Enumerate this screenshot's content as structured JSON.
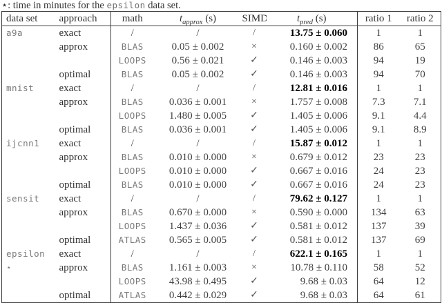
{
  "caption": {
    "prefix": "⋆: time in minutes for the ",
    "dataset_code": "epsilon",
    "suffix": " data set."
  },
  "colors": {
    "border": "#3a3a3a",
    "text": "#333333",
    "mono_text": "#7a7a7a",
    "bold_text": "#000000"
  },
  "table": {
    "headers": {
      "dataset": "data set",
      "approach": "approach",
      "math": "math",
      "t_approx": {
        "sym": "t",
        "sub": "approx",
        "unit": " (s)"
      },
      "simd": "SIMD",
      "t_pred": {
        "sym": "t",
        "sub": "pred",
        "unit": " (s)"
      },
      "ratio1": "ratio 1",
      "ratio2": "ratio 2"
    },
    "rows": [
      {
        "dataset": "a9a",
        "approach": "exact",
        "math": "/",
        "t_approx": "/",
        "simd": "/",
        "t_pred": "13.75 ± 0.060",
        "t_pred_bold": true,
        "ratio1": "1",
        "ratio2": "1"
      },
      {
        "dataset": "",
        "approach": "approx",
        "math": "BLAS",
        "t_approx": "0.05 ± 0.002",
        "simd": "×",
        "t_pred": "0.160 ± 0.002",
        "t_pred_bold": false,
        "ratio1": "86",
        "ratio2": "65"
      },
      {
        "dataset": "",
        "approach": "",
        "math": "LOOPS",
        "t_approx": "0.56 ± 0.021",
        "simd": "✓",
        "t_pred": "0.146 ± 0.003",
        "t_pred_bold": false,
        "ratio1": "94",
        "ratio2": "19"
      },
      {
        "dataset": "",
        "approach": "optimal",
        "math": "BLAS",
        "t_approx": "0.05 ± 0.002",
        "simd": "✓",
        "t_pred": "0.146 ± 0.003",
        "t_pred_bold": false,
        "ratio1": "94",
        "ratio2": "70"
      },
      {
        "dataset": "mnist",
        "approach": "exact",
        "math": "/",
        "t_approx": "/",
        "simd": "/",
        "t_pred": "12.81 ± 0.016",
        "t_pred_bold": true,
        "ratio1": "1",
        "ratio2": "1"
      },
      {
        "dataset": "",
        "approach": "approx",
        "math": "BLAS",
        "t_approx": "0.036 ± 0.001",
        "simd": "×",
        "t_pred": "1.757 ± 0.008",
        "t_pred_bold": false,
        "ratio1": "7.3",
        "ratio2": "7.1"
      },
      {
        "dataset": "",
        "approach": "",
        "math": "LOOPS",
        "t_approx": "1.480 ± 0.005",
        "simd": "✓",
        "t_pred": "1.405 ± 0.006",
        "t_pred_bold": false,
        "ratio1": "9.1",
        "ratio2": "4.4"
      },
      {
        "dataset": "",
        "approach": "optimal",
        "math": "BLAS",
        "t_approx": "0.036 ± 0.001",
        "simd": "✓",
        "t_pred": "1.405 ± 0.006",
        "t_pred_bold": false,
        "ratio1": "9.1",
        "ratio2": "8.9"
      },
      {
        "dataset": "ijcnn1",
        "approach": "exact",
        "math": "/",
        "t_approx": "/",
        "simd": "/",
        "t_pred": "15.87 ± 0.012",
        "t_pred_bold": true,
        "ratio1": "1",
        "ratio2": "1"
      },
      {
        "dataset": "",
        "approach": "approx",
        "math": "BLAS",
        "t_approx": "0.010 ± 0.000",
        "simd": "×",
        "t_pred": "0.679 ± 0.012",
        "t_pred_bold": false,
        "ratio1": "23",
        "ratio2": "23"
      },
      {
        "dataset": "",
        "approach": "",
        "math": "LOOPS",
        "t_approx": "0.010 ± 0.000",
        "simd": "✓",
        "t_pred": "0.667 ± 0.016",
        "t_pred_bold": false,
        "ratio1": "24",
        "ratio2": "23"
      },
      {
        "dataset": "",
        "approach": "optimal",
        "math": "BLAS",
        "t_approx": "0.010 ± 0.000",
        "simd": "✓",
        "t_pred": "0.667 ± 0.016",
        "t_pred_bold": false,
        "ratio1": "24",
        "ratio2": "23"
      },
      {
        "dataset": "sensit",
        "approach": "exact",
        "math": "/",
        "t_approx": "/",
        "simd": "/",
        "t_pred": "79.62 ± 0.127",
        "t_pred_bold": true,
        "ratio1": "1",
        "ratio2": "1"
      },
      {
        "dataset": "",
        "approach": "approx",
        "math": "BLAS",
        "t_approx": "0.670 ± 0.000",
        "simd": "×",
        "t_pred": "0.590 ± 0.000",
        "t_pred_bold": false,
        "ratio1": "134",
        "ratio2": "63"
      },
      {
        "dataset": "",
        "approach": "",
        "math": "LOOPS",
        "t_approx": "1.437 ± 0.036",
        "simd": "✓",
        "t_pred": "0.581 ± 0.012",
        "t_pred_bold": false,
        "ratio1": "137",
        "ratio2": "39"
      },
      {
        "dataset": "",
        "approach": "optimal",
        "math": "ATLAS",
        "t_approx": "0.565 ± 0.005",
        "simd": "✓",
        "t_pred": "0.581 ± 0.012",
        "t_pred_bold": false,
        "ratio1": "137",
        "ratio2": "69"
      },
      {
        "dataset": "epsilon",
        "approach": "exact",
        "math": "/",
        "t_approx": "/",
        "simd": "/",
        "t_pred": "622.1 ± 0.165",
        "t_pred_bold": true,
        "ratio1": "1",
        "ratio2": "1"
      },
      {
        "dataset": "⋆",
        "approach": "approx",
        "math": "BLAS",
        "t_approx": "1.161 ± 0.003",
        "simd": "×",
        "t_pred": "10.78 ± 0.110",
        "t_pred_bold": false,
        "ratio1": "58",
        "ratio2": "52"
      },
      {
        "dataset": "",
        "approach": "",
        "math": "LOOPS",
        "t_approx": "43.98 ± 0.495",
        "simd": "✓",
        "t_pred": "9.68 ± 0.03",
        "t_pred_bold": false,
        "ratio1": "64",
        "ratio2": "12"
      },
      {
        "dataset": "",
        "approach": "optimal",
        "math": "ATLAS",
        "t_approx": "0.442 ± 0.029",
        "simd": "✓",
        "t_pred": "9.68 ± 0.03",
        "t_pred_bold": false,
        "ratio1": "64",
        "ratio2": "61"
      }
    ]
  }
}
